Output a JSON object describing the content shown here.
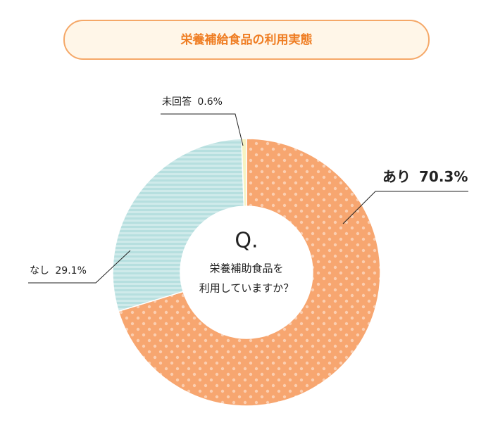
{
  "chart_data": {
    "type": "donut",
    "title": "栄養補給食品の利用実態",
    "center_label": "Q.",
    "center_text": [
      "栄養補助食品を",
      "利用していますか？"
    ],
    "categories": [
      "あり",
      "なし",
      "未回答"
    ],
    "values": [
      70.3,
      29.1,
      0.6
    ],
    "value_labels": [
      "70.3%",
      "29.1%",
      "0.6%"
    ],
    "colors": [
      "#f7a670",
      "#b6dfdf",
      "#f7f3c2"
    ]
  }
}
